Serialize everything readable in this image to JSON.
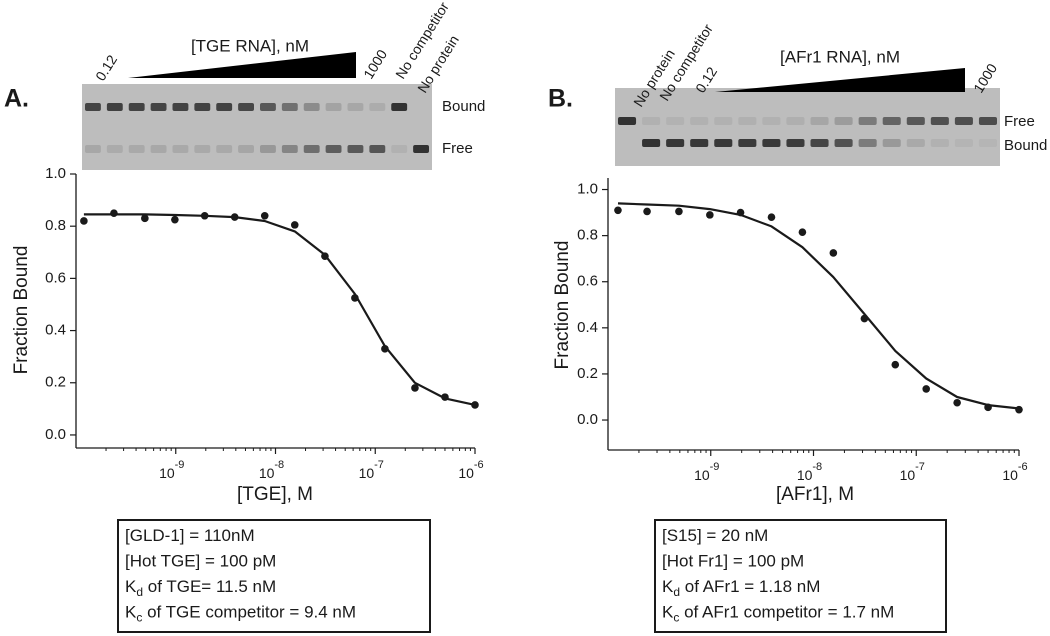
{
  "chart_data": [
    {
      "type": "scatter",
      "panel_label": "A.",
      "gel": {
        "title": "[TGE RNA], nM",
        "lanes": [
          "0.12",
          "1000",
          "No competitor",
          "No protein"
        ],
        "bands": [
          "Bound",
          "Free"
        ]
      },
      "x_label": "[TGE],  M",
      "y_label": "Fraction Bound",
      "log_x": true,
      "xlim": [
        1e-10,
        1e-06
      ],
      "xticks": [
        {
          "value": 1e-09,
          "label": "10",
          "exponent": "-9"
        },
        {
          "value": 1e-08,
          "label": "10",
          "exponent": "-8"
        },
        {
          "value": 1e-07,
          "label": "10",
          "exponent": "-7"
        },
        {
          "value": 1e-06,
          "label": "10",
          "exponent": "-6"
        }
      ],
      "ylim": [
        -0.05,
        1.0
      ],
      "yticks": [
        {
          "value": 0,
          "label": "0.0"
        },
        0.2,
        0.4,
        0.6,
        0.8,
        {
          "value": 1,
          "label": "1.0"
        }
      ],
      "series": [
        {
          "mode": "markers",
          "color": "#1a1a1a",
          "x": [
            1.2e-10,
            2.4e-10,
            4.9e-10,
            9.8e-10,
            1.95e-09,
            3.9e-09,
            7.8e-09,
            1.56e-08,
            3.13e-08,
            6.25e-08,
            1.25e-07,
            2.5e-07,
            5e-07,
            1e-06
          ],
          "values": [
            0.82,
            0.85,
            0.83,
            0.825,
            0.84,
            0.835,
            0.84,
            0.805,
            0.685,
            0.525,
            0.33,
            0.18,
            0.145,
            0.115
          ]
        },
        {
          "mode": "line",
          "color": "#1a1a1a",
          "x": [
            1.2e-10,
            2.4e-10,
            4.9e-10,
            9.8e-10,
            1.95e-09,
            3.9e-09,
            7.8e-09,
            1.56e-08,
            3.13e-08,
            6.25e-08,
            1.25e-07,
            2.5e-07,
            5e-07,
            1e-06
          ],
          "values": [
            0.845,
            0.845,
            0.845,
            0.843,
            0.84,
            0.835,
            0.82,
            0.78,
            0.69,
            0.54,
            0.34,
            0.2,
            0.14,
            0.115
          ]
        }
      ],
      "notes": [
        {
          "text": "[GLD-1] = 110nM"
        },
        {
          "text": "[Hot TGE] = 100 pM"
        },
        {
          "text": "K",
          "sub": "d",
          "after": " of TGE= 11.5 nM"
        },
        {
          "text": "K",
          "sub": "c",
          "after": " of TGE competitor = 9.4 nM"
        }
      ]
    },
    {
      "type": "scatter",
      "panel_label": "B.",
      "gel": {
        "title": "[AFr1 RNA], nM",
        "lanes": [
          "No protein",
          "No competitor",
          "0.12",
          "1000"
        ],
        "bands": [
          "Free",
          "Bound"
        ]
      },
      "x_label": "[AFr1],  M",
      "y_label": "Fraction Bound",
      "log_x": true,
      "xlim": [
        1e-10,
        1e-06
      ],
      "xticks": [
        {
          "value": 1e-09,
          "label": "10",
          "exponent": "-9"
        },
        {
          "value": 1e-08,
          "label": "10",
          "exponent": "-8"
        },
        {
          "value": 1e-07,
          "label": "10",
          "exponent": "-7"
        },
        {
          "value": 1e-06,
          "label": "10",
          "exponent": "-6"
        }
      ],
      "ylim": [
        -0.13,
        1.05
      ],
      "yticks": [
        {
          "value": 0,
          "label": "0.0"
        },
        0.2,
        0.4,
        0.6,
        0.8,
        {
          "value": 1,
          "label": "1.0"
        }
      ],
      "series": [
        {
          "mode": "markers",
          "color": "#1a1a1a",
          "x": [
            1.25e-10,
            2.4e-10,
            4.9e-10,
            9.8e-10,
            1.95e-09,
            3.9e-09,
            7.8e-09,
            1.56e-08,
            3.13e-08,
            6.25e-08,
            1.25e-07,
            2.5e-07,
            5e-07,
            1e-06
          ],
          "values": [
            0.91,
            0.905,
            0.905,
            0.89,
            0.9,
            0.88,
            0.815,
            0.725,
            0.44,
            0.24,
            0.135,
            0.075,
            0.055,
            0.045
          ]
        },
        {
          "mode": "line",
          "color": "#1a1a1a",
          "x": [
            1.25e-10,
            2.4e-10,
            4.9e-10,
            9.8e-10,
            1.95e-09,
            3.9e-09,
            7.8e-09,
            1.56e-08,
            3.13e-08,
            6.25e-08,
            1.25e-07,
            2.5e-07,
            5e-07,
            1e-06
          ],
          "values": [
            0.94,
            0.935,
            0.93,
            0.915,
            0.89,
            0.84,
            0.75,
            0.62,
            0.46,
            0.3,
            0.18,
            0.1,
            0.065,
            0.05
          ]
        }
      ],
      "notes": [
        {
          "text": "[S15] = 20 nM"
        },
        {
          "text": "[Hot Fr1] = 100 pM"
        },
        {
          "text": "K",
          "sub": "d",
          "after": " of AFr1 = 1.18 nM"
        },
        {
          "text": "K",
          "sub": "c",
          "after": " of AFr1 competitor = 1.7 nM"
        }
      ]
    }
  ]
}
